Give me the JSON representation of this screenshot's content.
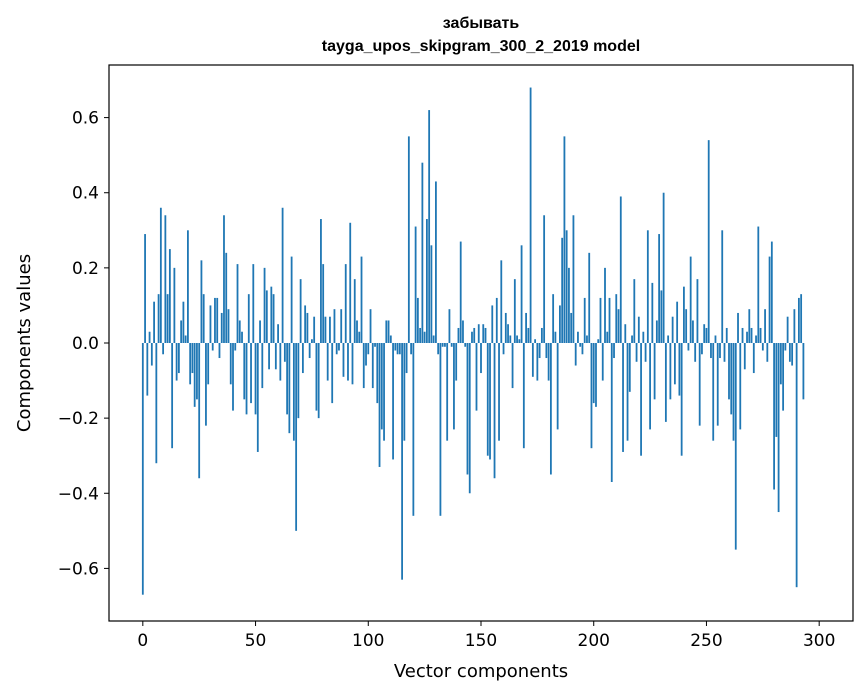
{
  "chart_data": {
    "type": "bar",
    "title": "забывать",
    "subtitle": "tayga_upos_skipgram_300_2_2019 model",
    "xlabel": "Vector components",
    "ylabel": "Components values",
    "xlim": [
      -15,
      315
    ],
    "ylim": [
      -0.74,
      0.74
    ],
    "xticks": [
      0,
      50,
      100,
      150,
      200,
      250,
      300
    ],
    "xtick_labels": [
      "0",
      "50",
      "100",
      "150",
      "200",
      "250",
      "300"
    ],
    "yticks": [
      -0.6,
      -0.4,
      -0.2,
      0.0,
      0.2,
      0.4,
      0.6
    ],
    "ytick_labels": [
      "−0.6",
      "−0.4",
      "−0.2",
      "0.0",
      "0.2",
      "0.4",
      "0.6"
    ],
    "bar_color": "#1f77b4",
    "values": [
      -0.67,
      0.29,
      -0.14,
      0.03,
      -0.06,
      0.11,
      -0.32,
      0.13,
      0.36,
      -0.03,
      0.34,
      0.13,
      0.25,
      -0.28,
      0.2,
      -0.1,
      -0.08,
      0.06,
      0.11,
      0.02,
      0.3,
      -0.11,
      -0.08,
      -0.17,
      -0.15,
      -0.36,
      0.22,
      0.13,
      -0.22,
      -0.11,
      0.1,
      -0.02,
      0.12,
      0.12,
      -0.04,
      0.08,
      0.34,
      0.24,
      0.09,
      -0.11,
      -0.18,
      -0.02,
      0.21,
      0.06,
      0.03,
      -0.15,
      -0.19,
      0.13,
      -0.16,
      0.21,
      -0.19,
      -0.29,
      0.06,
      -0.12,
      0.2,
      0.14,
      -0.07,
      0.15,
      0.13,
      -0.07,
      0.05,
      -0.1,
      0.36,
      -0.05,
      -0.19,
      -0.24,
      0.23,
      -0.26,
      -0.5,
      -0.2,
      0.17,
      -0.08,
      0.1,
      0.08,
      -0.04,
      0.01,
      0.07,
      -0.18,
      -0.2,
      0.33,
      0.21,
      0.07,
      -0.1,
      0.07,
      -0.16,
      0.09,
      -0.03,
      -0.02,
      0.09,
      -0.09,
      0.21,
      -0.1,
      0.32,
      -0.11,
      0.17,
      0.06,
      0.03,
      0.23,
      -0.12,
      -0.06,
      -0.03,
      0.09,
      -0.12,
      -0.01,
      -0.16,
      -0.33,
      -0.23,
      -0.26,
      0.06,
      0.06,
      0.02,
      -0.31,
      -0.02,
      -0.03,
      -0.03,
      -0.63,
      -0.26,
      -0.08,
      0.55,
      -0.03,
      -0.46,
      0.31,
      0.12,
      0.04,
      0.48,
      0.03,
      0.33,
      0.62,
      0.26,
      0.02,
      0.43,
      -0.03,
      -0.46,
      -0.01,
      -0.01,
      -0.26,
      0.09,
      -0.01,
      -0.23,
      -0.1,
      0.04,
      0.27,
      0.06,
      -0.01,
      -0.35,
      -0.4,
      0.03,
      0.04,
      -0.18,
      0.05,
      -0.08,
      0.05,
      0.04,
      -0.3,
      -0.31,
      0.1,
      -0.36,
      0.12,
      -0.26,
      0.22,
      -0.03,
      0.08,
      0.05,
      0.02,
      -0.12,
      0.17,
      0.02,
      0.01,
      0.26,
      -0.28,
      0.08,
      0.04,
      0.68,
      -0.09,
      0.01,
      -0.1,
      -0.04,
      0.04,
      0.34,
      -0.04,
      -0.1,
      -0.35,
      0.13,
      0.03,
      -0.23,
      0.1,
      0.28,
      0.55,
      0.3,
      0.2,
      0.08,
      0.34,
      -0.06,
      0.03,
      -0.01,
      -0.03,
      0.12,
      0.02,
      0.24,
      -0.28,
      -0.16,
      -0.17,
      0.01,
      0.12,
      -0.1,
      0.2,
      0.03,
      0.12,
      -0.37,
      -0.04,
      0.13,
      0.09,
      0.39,
      -0.29,
      0.05,
      -0.26,
      -0.13,
      0.02,
      0.17,
      -0.05,
      0.07,
      -0.3,
      0.03,
      -0.05,
      0.3,
      -0.23,
      0.16,
      -0.15,
      0.06,
      0.29,
      0.14,
      0.4,
      -0.21,
      0.02,
      -0.15,
      0.07,
      -0.11,
      0.11,
      -0.14,
      -0.3,
      0.15,
      0.09,
      -0.02,
      0.23,
      0.06,
      -0.05,
      0.17,
      -0.22,
      -0.03,
      0.05,
      0.04,
      0.54,
      -0.04,
      -0.26,
      0.02,
      -0.22,
      -0.04,
      0.3,
      -0.05,
      0.04,
      -0.15,
      -0.19,
      -0.26,
      -0.55,
      0.08,
      -0.23,
      0.04,
      -0.07,
      0.03,
      0.09,
      0.04,
      -0.08,
      0.02,
      0.31,
      0.04,
      -0.02,
      0.09,
      -0.05,
      0.23,
      0.27,
      -0.39,
      -0.25,
      -0.45,
      -0.11,
      -0.18,
      -0.02,
      0.07,
      -0.05,
      -0.06,
      0.09,
      -0.65,
      0.12,
      0.13,
      -0.15
    ]
  }
}
